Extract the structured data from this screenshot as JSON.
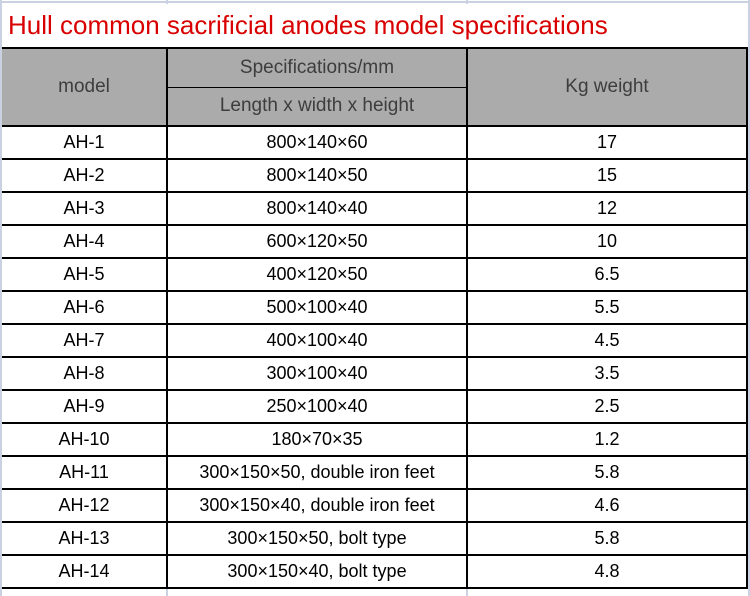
{
  "title": "Hull common sacrificial anodes model specifications",
  "colors": {
    "title_red": "#d80000",
    "header_bg": "#ababab",
    "table_border": "#000000",
    "gridline": "#c9d1e2"
  },
  "table": {
    "headers": {
      "model": "model",
      "specs_group": "Specifications/mm",
      "specs_sub": "Length x width x height",
      "weight": "Kg weight"
    },
    "rows": [
      {
        "model": "AH-1",
        "spec": "800×140×60",
        "weight": "17"
      },
      {
        "model": "AH-2",
        "spec": "800×140×50",
        "weight": "15"
      },
      {
        "model": "AH-3",
        "spec": "800×140×40",
        "weight": "12"
      },
      {
        "model": "AH-4",
        "spec": "600×120×50",
        "weight": "10"
      },
      {
        "model": "AH-5",
        "spec": "400×120×50",
        "weight": "6.5"
      },
      {
        "model": "AH-6",
        "spec": "500×100×40",
        "weight": "5.5"
      },
      {
        "model": "AH-7",
        "spec": "400×100×40",
        "weight": "4.5"
      },
      {
        "model": "AH-8",
        "spec": "300×100×40",
        "weight": "3.5"
      },
      {
        "model": "AH-9",
        "spec": "250×100×40",
        "weight": "2.5"
      },
      {
        "model": "AH-10",
        "spec": "180×70×35",
        "weight": "1.2"
      },
      {
        "model": "AH-11",
        "spec": "300×150×50, double iron feet",
        "weight": "5.8"
      },
      {
        "model": "AH-12",
        "spec": "300×150×40, double iron feet",
        "weight": "4.6"
      },
      {
        "model": "AH-13",
        "spec": "300×150×50, bolt type",
        "weight": "5.8"
      },
      {
        "model": "AH-14",
        "spec": "300×150×40, bolt type",
        "weight": "4.8"
      }
    ]
  }
}
